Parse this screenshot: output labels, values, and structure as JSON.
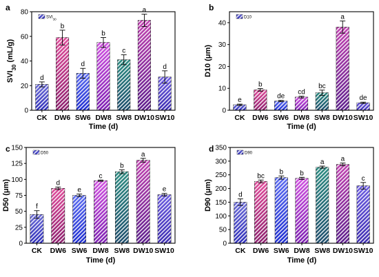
{
  "chart_data": [
    {
      "type": "bar",
      "panel": "a",
      "ylabel_main": "SVI",
      "ylabel_sub": "30",
      "ylabel_unit": " (mL/g)",
      "xlabel": "Time (d)",
      "legend": {
        "main": "SVI",
        "sub": "30"
      },
      "categories": [
        "CK",
        "DW6",
        "SW6",
        "DW8",
        "SW8",
        "DW10",
        "SW10"
      ],
      "values": [
        21,
        59,
        30,
        55,
        41,
        73,
        27
      ],
      "errors": [
        2,
        6,
        4,
        4,
        4,
        5,
        5
      ],
      "letters": [
        "d",
        "b",
        "d",
        "b",
        "c",
        "a",
        "d"
      ],
      "ylim": [
        0,
        80
      ],
      "yticks": [
        0,
        20,
        40,
        60,
        80
      ]
    },
    {
      "type": "bar",
      "panel": "b",
      "ylabel_main": "D10 (μm)",
      "ylabel_sub": "",
      "ylabel_unit": "",
      "xlabel": "Time (d)",
      "legend": {
        "main": "D10",
        "sub": ""
      },
      "categories": [
        "CK",
        "DW6",
        "SW6",
        "DW8",
        "SW8",
        "DW10",
        "SW10"
      ],
      "values": [
        2.5,
        9.3,
        4.2,
        6.0,
        8.0,
        38.0,
        3.4
      ],
      "errors": [
        0.3,
        0.6,
        0.3,
        0.4,
        1.2,
        2.8,
        0.3
      ],
      "letters": [
        "e",
        "b",
        "de",
        "cd",
        "bc",
        "a",
        "de"
      ],
      "ylim": [
        0,
        45
      ],
      "yticks": [
        0,
        10,
        20,
        30,
        40
      ]
    },
    {
      "type": "bar",
      "panel": "c",
      "ylabel_main": "D50 (μm)",
      "ylabel_sub": "",
      "ylabel_unit": "",
      "xlabel": "Time (d)",
      "legend": {
        "main": "D50",
        "sub": ""
      },
      "categories": [
        "CK",
        "DW6",
        "SW6",
        "DW8",
        "SW8",
        "DW10",
        "SW10"
      ],
      "values": [
        45,
        86,
        75,
        98,
        112,
        130,
        76
      ],
      "errors": [
        6,
        2,
        2,
        1,
        3,
        3,
        2
      ],
      "letters": [
        "f",
        "d",
        "e",
        "c",
        "b",
        "a",
        "e"
      ],
      "ylim": [
        0,
        150
      ],
      "yticks": [
        0,
        25,
        50,
        75,
        100,
        125,
        150
      ]
    },
    {
      "type": "bar",
      "panel": "d",
      "ylabel_main": "D90 (μm)",
      "ylabel_sub": "",
      "ylabel_unit": "",
      "xlabel": "Time (d)",
      "legend": {
        "main": "D90",
        "sub": ""
      },
      "categories": [
        "CK",
        "DW6",
        "SW6",
        "DW8",
        "SW8",
        "DW10",
        "SW10"
      ],
      "values": [
        150,
        226,
        240,
        237,
        278,
        288,
        210
      ],
      "errors": [
        12,
        5,
        6,
        4,
        4,
        5,
        12
      ],
      "letters": [
        "d",
        "bc",
        "b",
        "b",
        "a",
        "a",
        "c"
      ],
      "ylim": [
        0,
        350
      ],
      "yticks": [
        0,
        50,
        100,
        150,
        200,
        250,
        300,
        350
      ]
    }
  ],
  "colors": {
    "bar_gradients": [
      [
        "#6b6bd6",
        "#2a2ab8"
      ],
      [
        "#e04a9a",
        "#8a1a6a"
      ],
      [
        "#5a6af0",
        "#1a2ad0"
      ],
      [
        "#d050e0",
        "#7a1ab0"
      ],
      [
        "#2a8a80",
        "#1a4a6a"
      ],
      [
        "#c040b0",
        "#5a1a8a"
      ],
      [
        "#6a5ae0",
        "#3a2ab0"
      ]
    ]
  }
}
